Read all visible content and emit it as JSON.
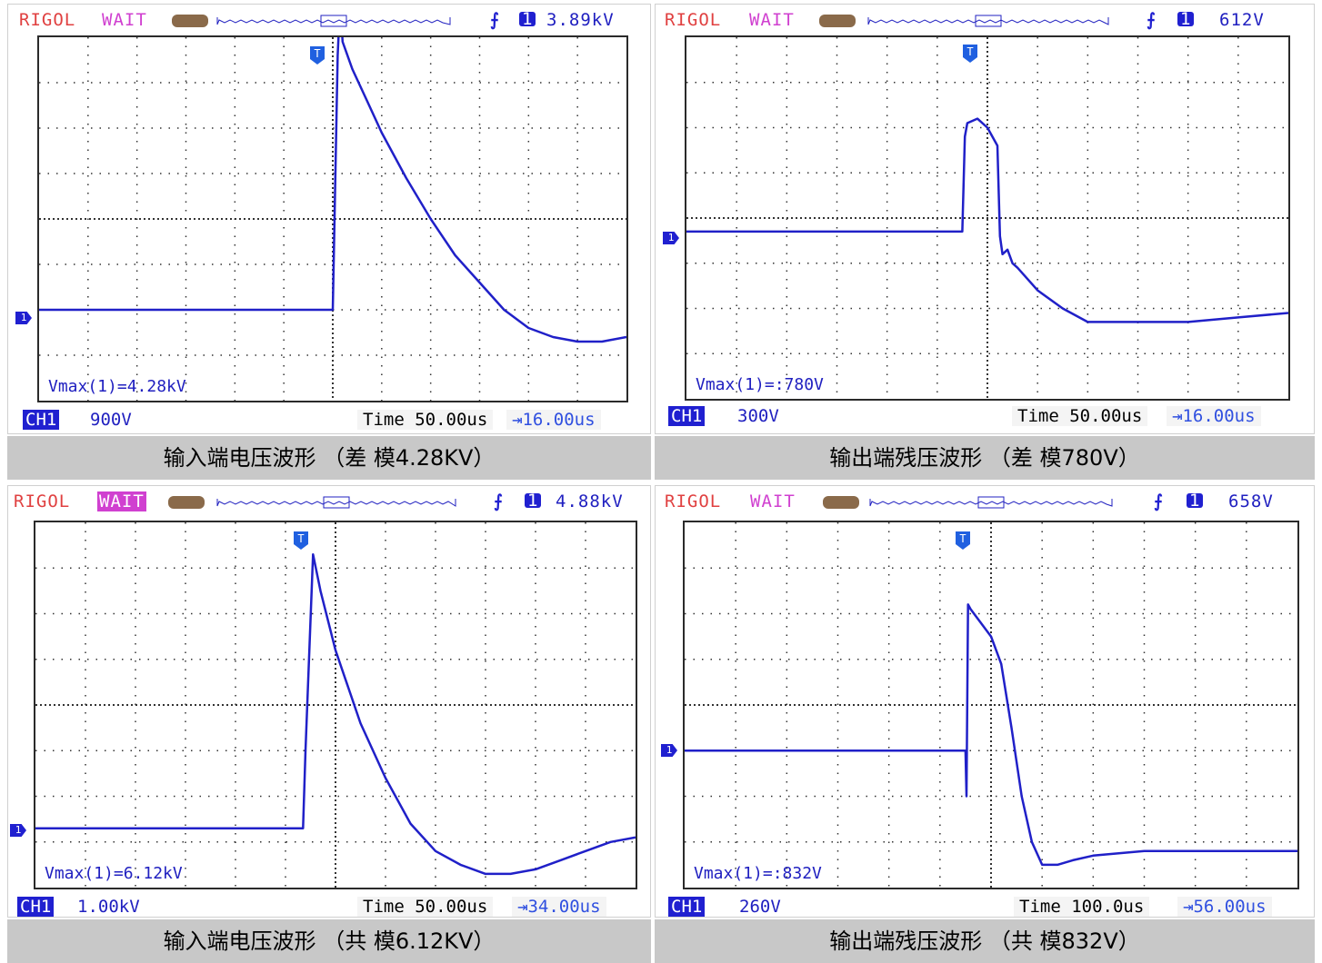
{
  "panels": [
    {
      "brand": "RIGOL",
      "status": "WAIT",
      "status_highlight": false,
      "trigger_ch": "1",
      "trigger_level": "3.89kV",
      "ch_label": "CH1",
      "ch_scale": "900V",
      "time_label": "Time",
      "timebase": "50.00us",
      "offset": "16.00us",
      "vmax": "Vmax(1)=4.28kV",
      "caption": "输入端电压波形  （差  模4.28KV）"
    },
    {
      "brand": "RIGOL",
      "status": "WAIT",
      "status_highlight": false,
      "trigger_ch": "1",
      "trigger_level": "612V",
      "ch_label": "CH1",
      "ch_scale": "300V",
      "time_label": "Time",
      "timebase": "50.00us",
      "offset": "16.00us",
      "vmax": "Vmax(1)=:780V",
      "caption": "输出端残压波形  （差  模780V）"
    },
    {
      "brand": "RIGOL",
      "status": "WAIT",
      "status_highlight": true,
      "trigger_ch": "1",
      "trigger_level": "4.88kV",
      "ch_label": "CH1",
      "ch_scale": "1.00kV",
      "time_label": "Time",
      "timebase": "50.00us",
      "offset": "34.00us",
      "vmax": "Vmax(1)=6.12kV",
      "caption": "输入端电压波形  （共  模6.12KV）"
    },
    {
      "brand": "RIGOL",
      "status": "WAIT",
      "status_highlight": false,
      "trigger_ch": "1",
      "trigger_level": "658V",
      "ch_label": "CH1",
      "ch_scale": "260V",
      "time_label": "Time",
      "timebase": "100.0us",
      "offset": "56.00us",
      "vmax": "Vmax(1)=:832V",
      "caption": "输出端残压波形  （共  模832V）"
    }
  ],
  "colors": {
    "trace": "#2020c8",
    "brand": "#e04040",
    "wait": "#d040d0"
  },
  "chart_data": [
    {
      "type": "line",
      "x": [
        0,
        1,
        2,
        3,
        4,
        5,
        6,
        6.1,
        6.15,
        6.2,
        6.4,
        6.7,
        7,
        7.5,
        8,
        8.5,
        9,
        9.5,
        10,
        10.5,
        11,
        11.5,
        12
      ],
      "y": [
        -2.0,
        -2.0,
        -2.0,
        -2.0,
        -2.0,
        -2.0,
        -2.0,
        3.6,
        4.8,
        3.9,
        3.3,
        2.6,
        1.9,
        0.9,
        0.0,
        -0.8,
        -1.4,
        -2.0,
        -2.4,
        -2.6,
        -2.7,
        -2.7,
        -2.6
      ],
      "ylim": [
        -4,
        4
      ],
      "xlim": [
        0,
        12
      ]
    },
    {
      "type": "line",
      "x": [
        0,
        2,
        4,
        5.5,
        5.55,
        5.6,
        5.8,
        6.0,
        6.2,
        6.25,
        6.3,
        6.4,
        6.5,
        6.6,
        7,
        7.5,
        8,
        9,
        10,
        11,
        12
      ],
      "y": [
        -0.3,
        -0.3,
        -0.3,
        -0.3,
        1.8,
        2.1,
        2.2,
        2.0,
        1.6,
        -0.4,
        -0.8,
        -0.7,
        -1.0,
        -1.1,
        -1.6,
        -2.0,
        -2.3,
        -2.3,
        -2.3,
        -2.2,
        -2.1
      ],
      "ylim": [
        -4,
        4
      ],
      "xlim": [
        0,
        12
      ]
    },
    {
      "type": "line",
      "x": [
        0,
        2,
        4,
        5.35,
        5.4,
        5.55,
        5.7,
        6,
        6.5,
        7,
        7.5,
        8,
        8.5,
        9,
        9.5,
        10,
        10.5,
        11,
        11.5,
        12
      ],
      "y": [
        -2.7,
        -2.7,
        -2.7,
        -2.7,
        -1.0,
        3.3,
        2.5,
        1.2,
        -0.4,
        -1.6,
        -2.6,
        -3.2,
        -3.5,
        -3.7,
        -3.7,
        -3.6,
        -3.4,
        -3.2,
        -3.0,
        -2.9
      ],
      "ylim": [
        -4,
        4
      ],
      "xlim": [
        0,
        12
      ]
    },
    {
      "type": "line",
      "x": [
        0,
        2,
        4,
        5.5,
        5.52,
        5.55,
        5.6,
        5.8,
        6.0,
        6.2,
        6.4,
        6.6,
        6.8,
        7.0,
        7.3,
        7.6,
        8,
        9,
        10,
        11,
        12
      ],
      "y": [
        -1.0,
        -1.0,
        -1.0,
        -1.0,
        -2.0,
        2.2,
        2.1,
        1.8,
        1.5,
        0.9,
        -0.5,
        -2.0,
        -3.0,
        -3.5,
        -3.5,
        -3.4,
        -3.3,
        -3.2,
        -3.2,
        -3.2,
        -3.2
      ],
      "ylim": [
        -4,
        4
      ],
      "xlim": [
        0,
        12
      ]
    }
  ]
}
